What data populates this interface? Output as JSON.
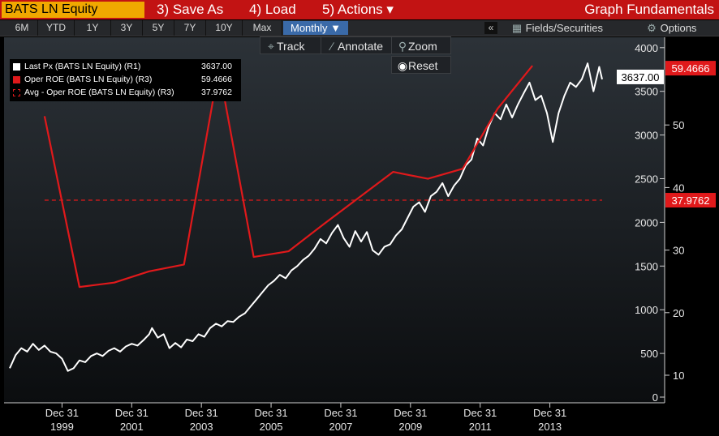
{
  "header": {
    "ticker": "BATS LN Equity",
    "menu": [
      "3) Save As",
      "4) Load",
      "5) Actions ▾"
    ],
    "right_title": "Graph Fundamentals"
  },
  "range_bar": {
    "ranges": [
      "6M",
      "YTD",
      "1Y",
      "3Y",
      "5Y",
      "7Y",
      "10Y",
      "Max"
    ],
    "period": "Monthly ▼",
    "collapse": "«",
    "fields_label": "Fields/Securities",
    "options_label": "Options"
  },
  "tools": {
    "track": "Track",
    "annotate": "Annotate",
    "zoom": "Zoom",
    "reset": "Reset"
  },
  "legend": [
    {
      "name": "Last Px (BATS LN Equity) (R1)",
      "value": "3637.00",
      "color": "#ffffff",
      "style": "solid"
    },
    {
      "name": "Oper ROE (BATS LN Equity) (R3)",
      "value": "59.4666",
      "color": "#e0191b",
      "style": "solid"
    },
    {
      "name": "Avg - Oper ROE (BATS LN Equity) (R3)",
      "value": "37.9762",
      "color": "#e0191b",
      "style": "dashed"
    }
  ],
  "chart_data": {
    "type": "line",
    "x_tick_labels": [
      [
        "Dec 31",
        "1999"
      ],
      [
        "Dec 31",
        "2001"
      ],
      [
        "Dec 31",
        "2003"
      ],
      [
        "Dec 31",
        "2005"
      ],
      [
        "Dec 31",
        "2007"
      ],
      [
        "Dec 31",
        "2009"
      ],
      [
        "Dec 31",
        "2011"
      ],
      [
        "Dec 31",
        "2013"
      ]
    ],
    "xlim": [
      "1998-06",
      "2015-06"
    ],
    "axes": {
      "R1": {
        "ticks": [
          0,
          500,
          1000,
          1500,
          2000,
          2500,
          3000,
          3500,
          4000
        ],
        "range": [
          0,
          4000
        ]
      },
      "R3": {
        "ticks": [
          10,
          20,
          30,
          40,
          50
        ],
        "range": [
          7.5,
          60.5
        ]
      }
    },
    "last_labels": {
      "R1": "3637.00",
      "R3": "59.4666",
      "R3_avg": "37.9762"
    },
    "series": [
      {
        "name": "Last Px (BATS LN Equity) (R1)",
        "axis": "R1",
        "color": "#ffffff",
        "points": [
          [
            "1998-06",
            330
          ],
          [
            "1998-08",
            480
          ],
          [
            "1998-10",
            560
          ],
          [
            "1998-12",
            520
          ],
          [
            "1999-02",
            610
          ],
          [
            "1999-04",
            540
          ],
          [
            "1999-06",
            590
          ],
          [
            "1999-08",
            520
          ],
          [
            "1999-10",
            500
          ],
          [
            "1999-12",
            440
          ],
          [
            "2000-02",
            300
          ],
          [
            "2000-04",
            330
          ],
          [
            "2000-06",
            420
          ],
          [
            "2000-08",
            400
          ],
          [
            "2000-10",
            470
          ],
          [
            "2000-12",
            500
          ],
          [
            "2001-02",
            470
          ],
          [
            "2001-04",
            530
          ],
          [
            "2001-06",
            560
          ],
          [
            "2001-08",
            520
          ],
          [
            "2001-10",
            580
          ],
          [
            "2001-12",
            610
          ],
          [
            "2002-02",
            590
          ],
          [
            "2002-04",
            650
          ],
          [
            "2002-06",
            720
          ],
          [
            "2002-07",
            790
          ],
          [
            "2002-09",
            680
          ],
          [
            "2002-11",
            720
          ],
          [
            "2003-01",
            560
          ],
          [
            "2003-03",
            620
          ],
          [
            "2003-05",
            570
          ],
          [
            "2003-07",
            660
          ],
          [
            "2003-09",
            640
          ],
          [
            "2003-11",
            720
          ],
          [
            "2004-01",
            690
          ],
          [
            "2004-03",
            790
          ],
          [
            "2004-05",
            840
          ],
          [
            "2004-07",
            810
          ],
          [
            "2004-09",
            870
          ],
          [
            "2004-11",
            860
          ],
          [
            "2005-01",
            920
          ],
          [
            "2005-03",
            960
          ],
          [
            "2005-05",
            1040
          ],
          [
            "2005-07",
            1120
          ],
          [
            "2005-09",
            1200
          ],
          [
            "2005-11",
            1280
          ],
          [
            "2006-01",
            1330
          ],
          [
            "2006-03",
            1400
          ],
          [
            "2006-05",
            1360
          ],
          [
            "2006-07",
            1450
          ],
          [
            "2006-09",
            1500
          ],
          [
            "2006-11",
            1570
          ],
          [
            "2007-01",
            1620
          ],
          [
            "2007-03",
            1700
          ],
          [
            "2007-05",
            1810
          ],
          [
            "2007-07",
            1760
          ],
          [
            "2007-09",
            1880
          ],
          [
            "2007-11",
            1970
          ],
          [
            "2008-01",
            1820
          ],
          [
            "2008-03",
            1720
          ],
          [
            "2008-05",
            1900
          ],
          [
            "2008-07",
            1780
          ],
          [
            "2008-09",
            1890
          ],
          [
            "2008-11",
            1680
          ],
          [
            "2009-01",
            1630
          ],
          [
            "2009-03",
            1720
          ],
          [
            "2009-05",
            1750
          ],
          [
            "2009-07",
            1850
          ],
          [
            "2009-09",
            1920
          ],
          [
            "2009-11",
            2050
          ],
          [
            "2010-01",
            2180
          ],
          [
            "2010-03",
            2230
          ],
          [
            "2010-05",
            2120
          ],
          [
            "2010-07",
            2300
          ],
          [
            "2010-09",
            2350
          ],
          [
            "2010-11",
            2450
          ],
          [
            "2011-01",
            2300
          ],
          [
            "2011-03",
            2420
          ],
          [
            "2011-05",
            2500
          ],
          [
            "2011-07",
            2650
          ],
          [
            "2011-09",
            2720
          ],
          [
            "2011-11",
            2960
          ],
          [
            "2012-01",
            2880
          ],
          [
            "2012-03",
            3100
          ],
          [
            "2012-05",
            3250
          ],
          [
            "2012-07",
            3180
          ],
          [
            "2012-09",
            3350
          ],
          [
            "2012-11",
            3200
          ],
          [
            "2013-01",
            3350
          ],
          [
            "2013-03",
            3480
          ],
          [
            "2013-05",
            3600
          ],
          [
            "2013-07",
            3400
          ],
          [
            "2013-09",
            3450
          ],
          [
            "2013-11",
            3250
          ],
          [
            "2014-01",
            2920
          ],
          [
            "2014-03",
            3250
          ],
          [
            "2014-05",
            3450
          ],
          [
            "2014-07",
            3600
          ],
          [
            "2014-09",
            3550
          ],
          [
            "2014-11",
            3640
          ],
          [
            "2015-01",
            3820
          ],
          [
            "2015-03",
            3500
          ],
          [
            "2015-05",
            3780
          ],
          [
            "2015-06",
            3637
          ]
        ]
      },
      {
        "name": "Oper ROE (BATS LN Equity) (R3)",
        "axis": "R3",
        "color": "#e0191b",
        "points": [
          [
            "1999-06",
            51.4
          ],
          [
            "2000-06",
            24.1
          ],
          [
            "2001-06",
            24.8
          ],
          [
            "2002-06",
            26.6
          ],
          [
            "2003-06",
            27.7
          ],
          [
            "2004-06",
            59.2
          ],
          [
            "2005-06",
            28.9
          ],
          [
            "2006-06",
            29.8
          ],
          [
            "2007-06",
            34.1
          ],
          [
            "2008-06",
            38.3
          ],
          [
            "2009-06",
            42.5
          ],
          [
            "2010-06",
            41.4
          ],
          [
            "2011-06",
            43.0
          ],
          [
            "2012-06",
            52.6
          ],
          [
            "2013-06",
            59.4666
          ]
        ]
      },
      {
        "name": "Avg - Oper ROE (BATS LN Equity) (R3)",
        "axis": "R3",
        "color": "#e0191b",
        "dashed": true,
        "points": [
          [
            "1999-06",
            37.9762
          ],
          [
            "2015-06",
            37.9762
          ]
        ]
      }
    ]
  }
}
